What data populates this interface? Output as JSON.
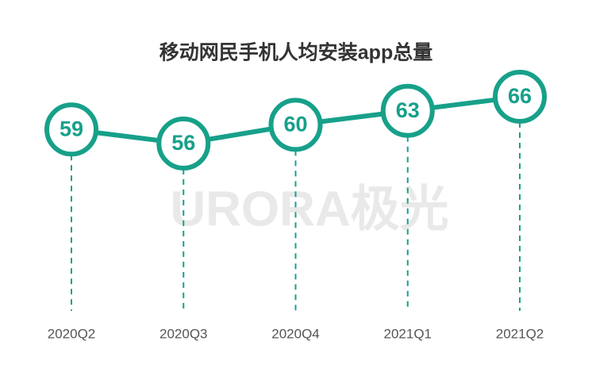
{
  "chart_data": {
    "type": "line",
    "title": "移动网民手机人均安装app总量",
    "categories": [
      "2020Q2",
      "2020Q3",
      "2020Q4",
      "2021Q1",
      "2021Q2"
    ],
    "values": [
      59,
      56,
      60,
      63,
      66
    ],
    "color": "#17a08a",
    "watermark": "URORA极光"
  }
}
